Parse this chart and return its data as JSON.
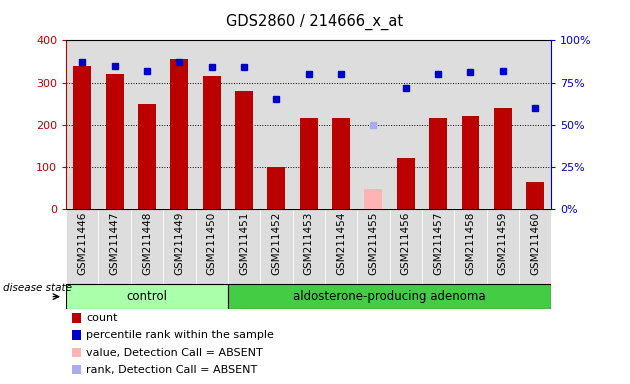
{
  "title": "GDS2860 / 214666_x_at",
  "samples": [
    "GSM211446",
    "GSM211447",
    "GSM211448",
    "GSM211449",
    "GSM211450",
    "GSM211451",
    "GSM211452",
    "GSM211453",
    "GSM211454",
    "GSM211455",
    "GSM211456",
    "GSM211457",
    "GSM211458",
    "GSM211459",
    "GSM211460"
  ],
  "counts": [
    340,
    320,
    250,
    355,
    315,
    280,
    100,
    215,
    215,
    0,
    122,
    215,
    222,
    240,
    65
  ],
  "counts_absent": [
    0,
    0,
    0,
    0,
    0,
    0,
    0,
    0,
    0,
    48,
    0,
    0,
    0,
    0,
    0
  ],
  "percentile_ranks": [
    87,
    85,
    82,
    87,
    84,
    84,
    65,
    80,
    80,
    0,
    72,
    80,
    81,
    82,
    60
  ],
  "percentile_ranks_absent": [
    0,
    0,
    0,
    0,
    0,
    0,
    0,
    0,
    0,
    50,
    0,
    0,
    0,
    0,
    0
  ],
  "absent_flags": [
    false,
    false,
    false,
    false,
    false,
    false,
    false,
    false,
    false,
    true,
    false,
    false,
    false,
    false,
    false
  ],
  "n_control": 5,
  "bar_color_normal": "#bb0000",
  "bar_color_absent": "#ffb3b3",
  "rank_color_normal": "#0000cc",
  "rank_color_absent": "#aaaaee",
  "ylim_left": [
    0,
    400
  ],
  "ylim_right": [
    0,
    100
  ],
  "yticks_left": [
    0,
    100,
    200,
    300,
    400
  ],
  "yticks_right": [
    0,
    25,
    50,
    75,
    100
  ],
  "yticklabels_left": [
    "0",
    "100",
    "200",
    "300",
    "400"
  ],
  "yticklabels_right": [
    "0%",
    "25%",
    "50%",
    "75%",
    "100%"
  ],
  "control_color": "#aaffaa",
  "adenoma_color": "#44cc44",
  "disease_state_label": "disease state",
  "control_label": "control",
  "adenoma_label": "aldosterone-producing adenoma",
  "legend_items": [
    {
      "label": "count",
      "color": "#bb0000",
      "alpha": 1.0
    },
    {
      "label": "percentile rank within the sample",
      "color": "#0000cc",
      "alpha": 1.0
    },
    {
      "label": "value, Detection Call = ABSENT",
      "color": "#ffb3b3",
      "alpha": 1.0
    },
    {
      "label": "rank, Detection Call = ABSENT",
      "color": "#aaaaee",
      "alpha": 1.0
    }
  ],
  "plot_bg_color": "#dddddd",
  "fig_bg_color": "#ffffff",
  "bar_width": 0.55
}
